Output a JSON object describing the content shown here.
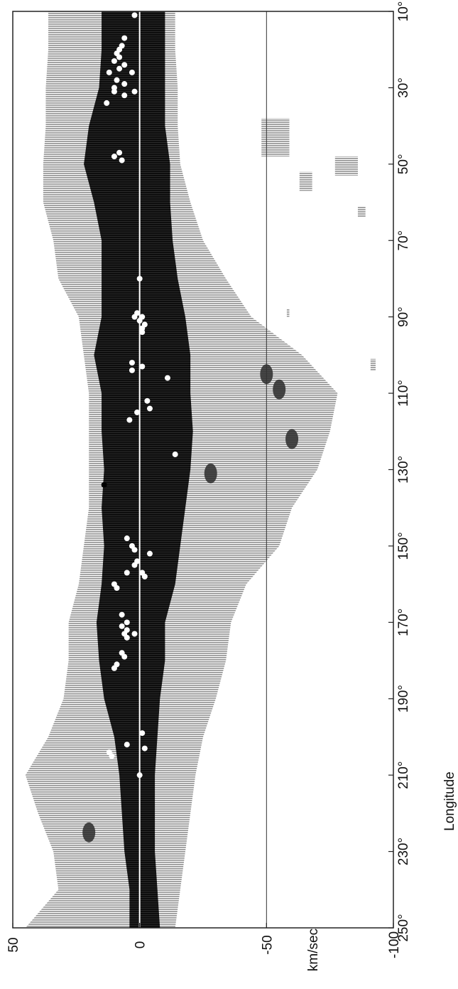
{
  "chart_data": {
    "type": "heatmap",
    "title": "",
    "xlabel": "Longitude",
    "ylabel": "km/sec",
    "xlim": [
      10,
      250
    ],
    "ylim": [
      -100,
      50
    ],
    "x_tick_labels": [
      "10°",
      "30°",
      "50°",
      "70°",
      "90°",
      "110°",
      "130°",
      "150°",
      "170°",
      "190°",
      "210°",
      "230°",
      "250°"
    ],
    "x_tick_values": [
      10,
      30,
      50,
      70,
      90,
      110,
      130,
      150,
      170,
      190,
      210,
      230,
      250
    ],
    "y_tick_labels": [
      "50",
      "0",
      "-50",
      "-100"
    ],
    "y_tick_values": [
      50,
      0,
      -50,
      -100
    ],
    "reference_lines": [
      0,
      -50
    ],
    "grid": false,
    "light_emission_envelope": [
      {
        "lon": 10,
        "vmin": -14,
        "vmax": 36
      },
      {
        "lon": 20,
        "vmin": -14,
        "vmax": 36
      },
      {
        "lon": 30,
        "vmin": -15,
        "vmax": 37
      },
      {
        "lon": 40,
        "vmin": -15,
        "vmax": 37
      },
      {
        "lon": 50,
        "vmin": -16,
        "vmax": 38
      },
      {
        "lon": 60,
        "vmin": -20,
        "vmax": 38
      },
      {
        "lon": 70,
        "vmin": -25,
        "vmax": 34
      },
      {
        "lon": 80,
        "vmin": -34,
        "vmax": 32
      },
      {
        "lon": 90,
        "vmin": -44,
        "vmax": 24
      },
      {
        "lon": 100,
        "vmin": -64,
        "vmax": 22
      },
      {
        "lon": 110,
        "vmin": -78,
        "vmax": 20
      },
      {
        "lon": 120,
        "vmin": -75,
        "vmax": 20
      },
      {
        "lon": 130,
        "vmin": -70,
        "vmax": 20
      },
      {
        "lon": 140,
        "vmin": -60,
        "vmax": 20
      },
      {
        "lon": 150,
        "vmin": -55,
        "vmax": 22
      },
      {
        "lon": 160,
        "vmin": -42,
        "vmax": 24
      },
      {
        "lon": 170,
        "vmin": -36,
        "vmax": 28
      },
      {
        "lon": 180,
        "vmin": -34,
        "vmax": 28
      },
      {
        "lon": 190,
        "vmin": -30,
        "vmax": 30
      },
      {
        "lon": 200,
        "vmin": -25,
        "vmax": 36
      },
      {
        "lon": 210,
        "vmin": -22,
        "vmax": 45
      },
      {
        "lon": 220,
        "vmin": -20,
        "vmax": 40
      },
      {
        "lon": 230,
        "vmin": -18,
        "vmax": 34
      },
      {
        "lon": 240,
        "vmin": -16,
        "vmax": 32
      },
      {
        "lon": 250,
        "vmin": -14,
        "vmax": 45
      }
    ],
    "dark_emission_envelope": [
      {
        "lon": 10,
        "vmin": -10,
        "vmax": 15
      },
      {
        "lon": 20,
        "vmin": -10,
        "vmax": 15
      },
      {
        "lon": 30,
        "vmin": -10,
        "vmax": 16
      },
      {
        "lon": 40,
        "vmin": -10,
        "vmax": 20
      },
      {
        "lon": 50,
        "vmin": -12,
        "vmax": 22
      },
      {
        "lon": 60,
        "vmin": -12,
        "vmax": 18
      },
      {
        "lon": 70,
        "vmin": -13,
        "vmax": 15
      },
      {
        "lon": 80,
        "vmin": -15,
        "vmax": 15
      },
      {
        "lon": 90,
        "vmin": -18,
        "vmax": 15
      },
      {
        "lon": 100,
        "vmin": -20,
        "vmax": 18
      },
      {
        "lon": 110,
        "vmin": -20,
        "vmax": 15
      },
      {
        "lon": 120,
        "vmin": -21,
        "vmax": 15
      },
      {
        "lon": 130,
        "vmin": -20,
        "vmax": 14
      },
      {
        "lon": 140,
        "vmin": -18,
        "vmax": 15
      },
      {
        "lon": 150,
        "vmin": -16,
        "vmax": 14
      },
      {
        "lon": 160,
        "vmin": -14,
        "vmax": 15
      },
      {
        "lon": 170,
        "vmin": -10,
        "vmax": 17
      },
      {
        "lon": 180,
        "vmin": -10,
        "vmax": 16
      },
      {
        "lon": 190,
        "vmin": -8,
        "vmax": 14
      },
      {
        "lon": 200,
        "vmin": -7,
        "vmax": 10
      },
      {
        "lon": 210,
        "vmin": -6,
        "vmax": 8
      },
      {
        "lon": 220,
        "vmin": -6,
        "vmax": 7
      },
      {
        "lon": 230,
        "vmin": -6,
        "vmax": 6
      },
      {
        "lon": 240,
        "vmin": -7,
        "vmax": 4
      },
      {
        "lon": 250,
        "vmin": -8,
        "vmax": 4
      }
    ],
    "detached_light_patches": [
      {
        "lon": [
          38,
          48
        ],
        "v": [
          -48,
          -59
        ]
      },
      {
        "lon": [
          48,
          53
        ],
        "v": [
          -77,
          -86
        ]
      },
      {
        "lon": [
          52,
          57
        ],
        "v": [
          -63,
          -68
        ]
      },
      {
        "lon": [
          61,
          64
        ],
        "v": [
          -86,
          -89
        ]
      },
      {
        "lon": [
          88,
          90
        ],
        "v": [
          -58,
          -59
        ]
      },
      {
        "lon": [
          101,
          104
        ],
        "v": [
          -91,
          -93
        ]
      }
    ],
    "dark_features": [
      {
        "lon": 109,
        "v": -55
      },
      {
        "lon": 105,
        "v": -50
      },
      {
        "lon": 122,
        "v": -60
      },
      {
        "lon": 131,
        "v": -28
      },
      {
        "lon": 225,
        "v": 20
      }
    ],
    "white_markers": [
      {
        "lon": 11,
        "v": 2
      },
      {
        "lon": 17,
        "v": 6
      },
      {
        "lon": 19,
        "v": 7
      },
      {
        "lon": 20,
        "v": 8
      },
      {
        "lon": 21,
        "v": 9
      },
      {
        "lon": 22,
        "v": 8
      },
      {
        "lon": 23,
        "v": 10
      },
      {
        "lon": 24,
        "v": 6
      },
      {
        "lon": 25,
        "v": 8
      },
      {
        "lon": 26,
        "v": 12
      },
      {
        "lon": 26,
        "v": 3
      },
      {
        "lon": 28,
        "v": 9
      },
      {
        "lon": 29,
        "v": 6
      },
      {
        "lon": 30,
        "v": 10
      },
      {
        "lon": 31,
        "v": 2
      },
      {
        "lon": 31,
        "v": 10
      },
      {
        "lon": 32,
        "v": 6
      },
      {
        "lon": 34,
        "v": 13
      },
      {
        "lon": 47,
        "v": 8
      },
      {
        "lon": 48,
        "v": 10
      },
      {
        "lon": 49,
        "v": 7
      },
      {
        "lon": 80,
        "v": 0
      },
      {
        "lon": 89,
        "v": 1
      },
      {
        "lon": 90,
        "v": 2
      },
      {
        "lon": 90,
        "v": -1
      },
      {
        "lon": 91,
        "v": 0
      },
      {
        "lon": 92,
        "v": -2
      },
      {
        "lon": 93,
        "v": -1
      },
      {
        "lon": 94,
        "v": -1
      },
      {
        "lon": 102,
        "v": 3
      },
      {
        "lon": 103,
        "v": -1
      },
      {
        "lon": 104,
        "v": 3
      },
      {
        "lon": 106,
        "v": -11
      },
      {
        "lon": 112,
        "v": -3
      },
      {
        "lon": 114,
        "v": -4
      },
      {
        "lon": 115,
        "v": 1
      },
      {
        "lon": 117,
        "v": 4
      },
      {
        "lon": 126,
        "v": -14
      },
      {
        "lon": 148,
        "v": 5
      },
      {
        "lon": 150,
        "v": 3
      },
      {
        "lon": 151,
        "v": 2
      },
      {
        "lon": 152,
        "v": -4
      },
      {
        "lon": 154,
        "v": 1
      },
      {
        "lon": 155,
        "v": 2
      },
      {
        "lon": 157,
        "v": 5
      },
      {
        "lon": 157,
        "v": -1
      },
      {
        "lon": 158,
        "v": -2
      },
      {
        "lon": 160,
        "v": 10
      },
      {
        "lon": 161,
        "v": 9
      },
      {
        "lon": 168,
        "v": 7
      },
      {
        "lon": 170,
        "v": 5
      },
      {
        "lon": 171,
        "v": 7
      },
      {
        "lon": 172,
        "v": 5
      },
      {
        "lon": 173,
        "v": 2
      },
      {
        "lon": 173,
        "v": 6
      },
      {
        "lon": 174,
        "v": 5
      },
      {
        "lon": 178,
        "v": 7
      },
      {
        "lon": 179,
        "v": 6
      },
      {
        "lon": 181,
        "v": 9
      },
      {
        "lon": 182,
        "v": 10
      },
      {
        "lon": 199,
        "v": -1
      },
      {
        "lon": 202,
        "v": 5
      },
      {
        "lon": 203,
        "v": -2
      },
      {
        "lon": 204,
        "v": 12
      },
      {
        "lon": 205,
        "v": 11
      },
      {
        "lon": 210,
        "v": 0
      }
    ],
    "black_markers": [
      {
        "lon": 134,
        "v": 14
      }
    ]
  }
}
